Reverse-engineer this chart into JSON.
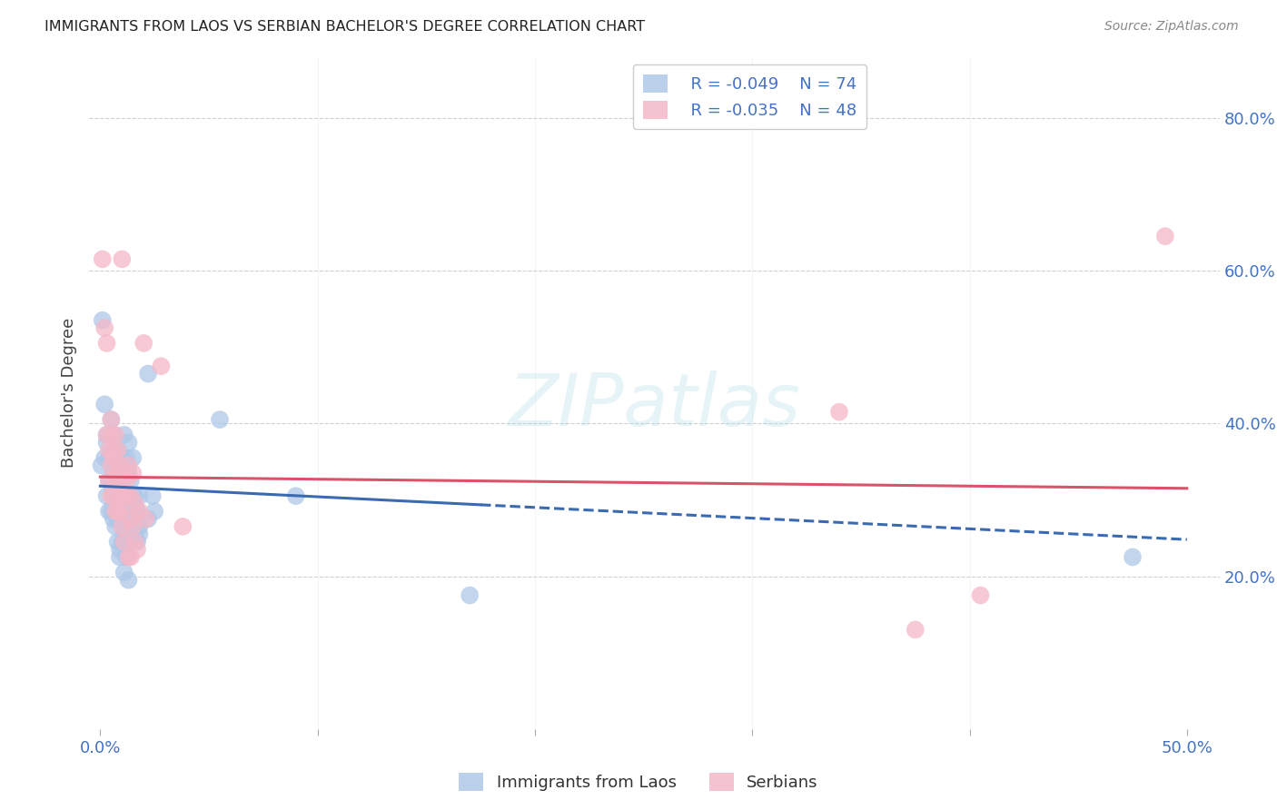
{
  "title": "IMMIGRANTS FROM LAOS VS SERBIAN BACHELOR'S DEGREE CORRELATION CHART",
  "source": "Source: ZipAtlas.com",
  "ylabel": "Bachelor's Degree",
  "xlabel_blue": "Immigrants from Laos",
  "xlabel_pink": "Serbians",
  "xlim": [
    -0.005,
    0.515
  ],
  "ylim": [
    0.0,
    0.88
  ],
  "xticks": [
    0.0,
    0.1,
    0.2,
    0.3,
    0.4,
    0.5
  ],
  "yticks": [
    0.2,
    0.4,
    0.6,
    0.8
  ],
  "ytick_labels": [
    "20.0%",
    "40.0%",
    "60.0%",
    "80.0%"
  ],
  "xtick_labels_show": [
    "0.0%",
    "",
    "",
    "",
    "",
    "50.0%"
  ],
  "legend_blue_R": "R = -0.049",
  "legend_blue_N": "N = 74",
  "legend_pink_R": "R = -0.035",
  "legend_pink_N": "N = 48",
  "blue_color": "#aec8e8",
  "pink_color": "#f4b8c8",
  "blue_line_color": "#3a6ab0",
  "pink_line_color": "#d9536a",
  "blue_scatter": [
    [
      0.0005,
      0.345
    ],
    [
      0.001,
      0.535
    ],
    [
      0.002,
      0.355
    ],
    [
      0.002,
      0.425
    ],
    [
      0.003,
      0.385
    ],
    [
      0.003,
      0.305
    ],
    [
      0.003,
      0.375
    ],
    [
      0.004,
      0.325
    ],
    [
      0.004,
      0.285
    ],
    [
      0.004,
      0.355
    ],
    [
      0.005,
      0.325
    ],
    [
      0.005,
      0.285
    ],
    [
      0.005,
      0.405
    ],
    [
      0.005,
      0.345
    ],
    [
      0.006,
      0.315
    ],
    [
      0.006,
      0.275
    ],
    [
      0.006,
      0.385
    ],
    [
      0.006,
      0.365
    ],
    [
      0.007,
      0.305
    ],
    [
      0.007,
      0.265
    ],
    [
      0.007,
      0.365
    ],
    [
      0.007,
      0.335
    ],
    [
      0.007,
      0.285
    ],
    [
      0.008,
      0.245
    ],
    [
      0.008,
      0.365
    ],
    [
      0.008,
      0.305
    ],
    [
      0.008,
      0.275
    ],
    [
      0.009,
      0.225
    ],
    [
      0.009,
      0.345
    ],
    [
      0.009,
      0.325
    ],
    [
      0.009,
      0.275
    ],
    [
      0.009,
      0.235
    ],
    [
      0.01,
      0.355
    ],
    [
      0.01,
      0.315
    ],
    [
      0.01,
      0.285
    ],
    [
      0.01,
      0.245
    ],
    [
      0.01,
      0.345
    ],
    [
      0.011,
      0.295
    ],
    [
      0.011,
      0.255
    ],
    [
      0.011,
      0.205
    ],
    [
      0.011,
      0.385
    ],
    [
      0.012,
      0.345
    ],
    [
      0.012,
      0.285
    ],
    [
      0.012,
      0.225
    ],
    [
      0.012,
      0.355
    ],
    [
      0.012,
      0.295
    ],
    [
      0.013,
      0.245
    ],
    [
      0.013,
      0.195
    ],
    [
      0.013,
      0.375
    ],
    [
      0.013,
      0.335
    ],
    [
      0.014,
      0.305
    ],
    [
      0.014,
      0.265
    ],
    [
      0.014,
      0.325
    ],
    [
      0.014,
      0.285
    ],
    [
      0.015,
      0.305
    ],
    [
      0.015,
      0.255
    ],
    [
      0.015,
      0.355
    ],
    [
      0.015,
      0.295
    ],
    [
      0.016,
      0.255
    ],
    [
      0.016,
      0.305
    ],
    [
      0.016,
      0.285
    ],
    [
      0.017,
      0.245
    ],
    [
      0.017,
      0.285
    ],
    [
      0.018,
      0.265
    ],
    [
      0.018,
      0.305
    ],
    [
      0.018,
      0.255
    ],
    [
      0.022,
      0.465
    ],
    [
      0.022,
      0.275
    ],
    [
      0.024,
      0.305
    ],
    [
      0.025,
      0.285
    ],
    [
      0.055,
      0.405
    ],
    [
      0.09,
      0.305
    ],
    [
      0.17,
      0.175
    ],
    [
      0.475,
      0.225
    ]
  ],
  "pink_scatter": [
    [
      0.001,
      0.615
    ],
    [
      0.002,
      0.525
    ],
    [
      0.003,
      0.505
    ],
    [
      0.003,
      0.385
    ],
    [
      0.004,
      0.365
    ],
    [
      0.004,
      0.325
    ],
    [
      0.005,
      0.385
    ],
    [
      0.005,
      0.345
    ],
    [
      0.005,
      0.305
    ],
    [
      0.005,
      0.405
    ],
    [
      0.006,
      0.365
    ],
    [
      0.006,
      0.305
    ],
    [
      0.006,
      0.355
    ],
    [
      0.007,
      0.325
    ],
    [
      0.007,
      0.285
    ],
    [
      0.007,
      0.385
    ],
    [
      0.008,
      0.335
    ],
    [
      0.008,
      0.285
    ],
    [
      0.008,
      0.365
    ],
    [
      0.009,
      0.305
    ],
    [
      0.009,
      0.345
    ],
    [
      0.009,
      0.285
    ],
    [
      0.01,
      0.325
    ],
    [
      0.01,
      0.265
    ],
    [
      0.01,
      0.615
    ],
    [
      0.011,
      0.305
    ],
    [
      0.011,
      0.245
    ],
    [
      0.012,
      0.325
    ],
    [
      0.012,
      0.305
    ],
    [
      0.013,
      0.225
    ],
    [
      0.013,
      0.345
    ],
    [
      0.014,
      0.275
    ],
    [
      0.014,
      0.225
    ],
    [
      0.014,
      0.305
    ],
    [
      0.015,
      0.265
    ],
    [
      0.015,
      0.335
    ],
    [
      0.016,
      0.245
    ],
    [
      0.016,
      0.295
    ],
    [
      0.017,
      0.235
    ],
    [
      0.018,
      0.285
    ],
    [
      0.02,
      0.505
    ],
    [
      0.021,
      0.275
    ],
    [
      0.028,
      0.475
    ],
    [
      0.038,
      0.265
    ],
    [
      0.34,
      0.415
    ],
    [
      0.375,
      0.13
    ],
    [
      0.405,
      0.175
    ],
    [
      0.49,
      0.645
    ]
  ],
  "blue_line_x": [
    0.0,
    0.5
  ],
  "blue_line_y_start": 0.318,
  "blue_line_y_end": 0.248,
  "blue_line_split": 0.175,
  "pink_line_x": [
    0.0,
    0.5
  ],
  "pink_line_y_start": 0.33,
  "pink_line_y_end": 0.315,
  "watermark_text": "ZIPatlas",
  "background_color": "#ffffff",
  "grid_color": "#d0d0d0"
}
